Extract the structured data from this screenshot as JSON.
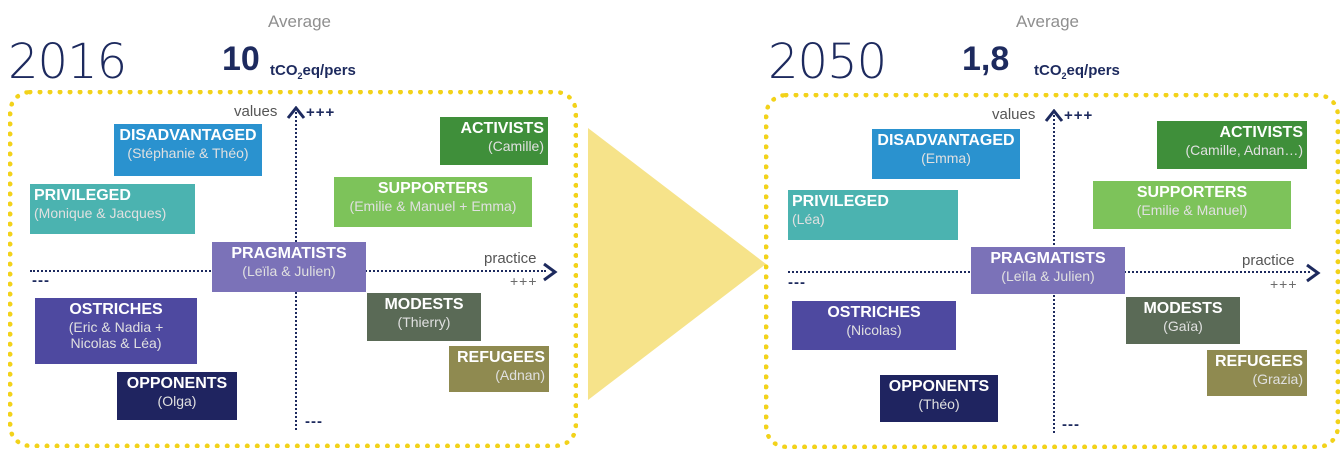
{
  "colors": {
    "navy": "#1d2a5e",
    "yellow_dots": "#f2d21a",
    "arrow": "#f6e38a",
    "disadvantaged": "#2a92cf",
    "privileged": "#4bb3b0",
    "activists": "#3f8f3a",
    "supporters": "#7dc35a",
    "pragmatists": "#7b72b8",
    "ostriches": "#4e49a0",
    "opponents": "#1f2460",
    "modests": "#5a6a56",
    "refugees": "#8f8a50"
  },
  "axes": {
    "values_label": "values",
    "values_plus": "+++",
    "values_minus": "---",
    "practice_label": "practice",
    "practice_plus": "+++",
    "practice_minus": "---"
  },
  "panels": {
    "p2016": {
      "year": "2016",
      "average_label": "Average",
      "average_value": "10",
      "unit_pre": "tCO",
      "unit_sub": "2",
      "unit_post": "eq/pers",
      "groups": {
        "disadvantaged": {
          "title": "DISADVANTAGED",
          "members": "(Stéphanie & Théo)"
        },
        "activists": {
          "title": "ACTIVISTS",
          "members": "(Camille)"
        },
        "privileged": {
          "title": "PRIVILEGED",
          "members": "(Monique & Jacques)"
        },
        "supporters": {
          "title": "SUPPORTERS",
          "members": "(Emilie & Manuel + Emma)"
        },
        "pragmatists": {
          "title": "PRAGMATISTS",
          "members": "(Leïla & Julien)"
        },
        "ostriches": {
          "title": "OSTRICHES",
          "members": "(Eric & Nadia +\nNicolas & Léa)"
        },
        "modests": {
          "title": "MODESTS",
          "members": "(Thierry)"
        },
        "refugees": {
          "title": "REFUGEES",
          "members": "(Adnan)"
        },
        "opponents": {
          "title": "OPPONENTS",
          "members": "(Olga)"
        }
      }
    },
    "p2050": {
      "year": "2050",
      "average_label": "Average",
      "average_value": "1,8",
      "unit_pre": "tCO",
      "unit_sub": "2",
      "unit_post": "eq/pers",
      "groups": {
        "disadvantaged": {
          "title": "DISADVANTAGED",
          "members": "(Emma)"
        },
        "activists": {
          "title": "ACTIVISTS",
          "members": "(Camille, Adnan…)"
        },
        "privileged": {
          "title": "PRIVILEGED",
          "members": "(Léa)"
        },
        "supporters": {
          "title": "SUPPORTERS",
          "members": "(Emilie & Manuel)"
        },
        "pragmatists": {
          "title": "PRAGMATISTS",
          "members": "(Leïla & Julien)"
        },
        "ostriches": {
          "title": "OSTRICHES",
          "members": "(Nicolas)"
        },
        "modests": {
          "title": "MODESTS",
          "members": "(Gaïa)"
        },
        "refugees": {
          "title": "REFUGEES",
          "members": "(Grazia)"
        },
        "opponents": {
          "title": "OPPONENTS",
          "members": "(Théo)"
        }
      }
    }
  }
}
